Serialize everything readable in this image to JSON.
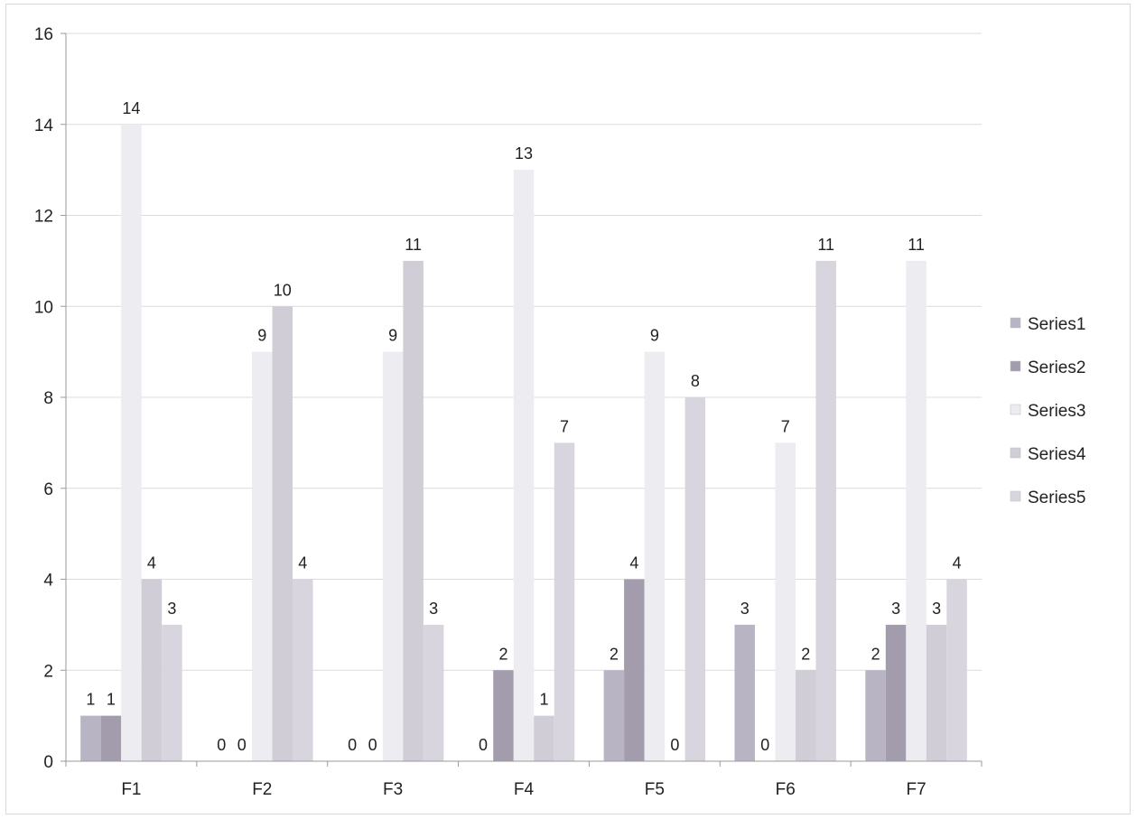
{
  "chart_data": {
    "type": "bar",
    "categories": [
      "F1",
      "F2",
      "F3",
      "F4",
      "F5",
      "F6",
      "F7"
    ],
    "series": [
      {
        "name": "Series1",
        "values": [
          1,
          0,
          0,
          0,
          2,
          3,
          2
        ]
      },
      {
        "name": "Series2",
        "values": [
          1,
          0,
          0,
          2,
          4,
          0,
          3
        ]
      },
      {
        "name": "Series3",
        "values": [
          14,
          9,
          9,
          13,
          9,
          7,
          11
        ]
      },
      {
        "name": "Series4",
        "values": [
          4,
          10,
          11,
          1,
          0,
          2,
          3
        ]
      },
      {
        "name": "Series5",
        "values": [
          3,
          4,
          3,
          7,
          8,
          11,
          4
        ]
      }
    ],
    "ylim": [
      0,
      16
    ],
    "yticks": [
      0,
      2,
      4,
      6,
      8,
      10,
      12,
      14,
      16
    ],
    "grid": true,
    "legend_position": "right",
    "data_labels": true,
    "colors": [
      "#b9b4c3",
      "#a29cad",
      "#ececf1",
      "#d0cdd6",
      "#d8d5de"
    ]
  }
}
